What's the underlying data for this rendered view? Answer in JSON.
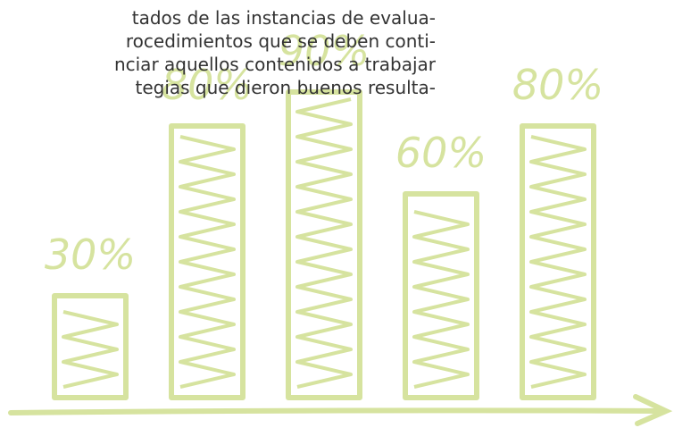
{
  "text_lines": [
    "tados de las instancias de evalua-",
    "rocedimientos que se deben conti-",
    "nciar aquellos contenidos a trabajar",
    "tegias que dieron buenos resulta-"
  ],
  "chart_data": {
    "type": "bar",
    "values": [
      30,
      80,
      90,
      60,
      80
    ],
    "value_labels": [
      "30%",
      "80%",
      "90%",
      "60%",
      "80%"
    ],
    "color": "#d6e39f"
  }
}
